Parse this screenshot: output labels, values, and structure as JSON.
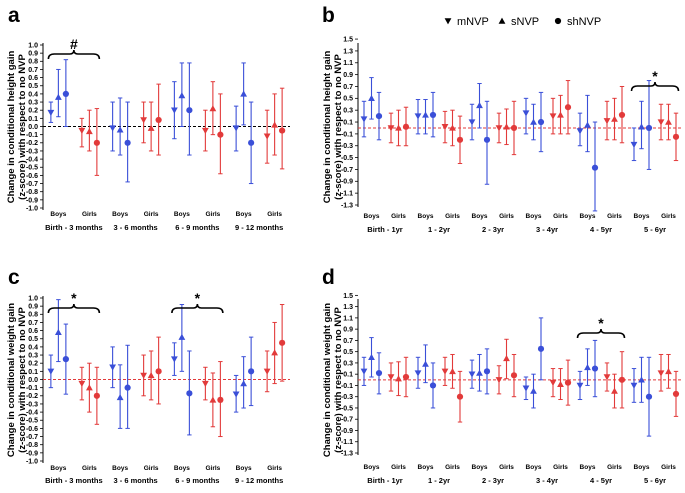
{
  "legend": {
    "entries": [
      {
        "symbol": "▼",
        "label": "mNVP",
        "marker": "tri-down"
      },
      {
        "symbol": "▲",
        "label": "sNVP",
        "marker": "tri-up"
      },
      {
        "symbol": "●",
        "label": "shNVP",
        "marker": "circle"
      }
    ]
  },
  "colors": {
    "boys": "#3a4fd8",
    "girls": "#e23a3a",
    "axis": "#000000",
    "zero_black": "#000000",
    "zero_red": "#e23a3a"
  },
  "chart_data": [
    {
      "id": "a",
      "letter": "a",
      "type": "scatter",
      "subtype": "errorbar",
      "ylabel_lines": [
        "Change in conditional height gain",
        "(z-score) with respect to no NVP"
      ],
      "ylim": [
        -1.0,
        1.0
      ],
      "ytick_step": 0.1,
      "zero_line": "black",
      "categories": [
        "Birth - 3 months",
        "3 - 6 months",
        "6 - 9 months",
        "9 - 12 months"
      ],
      "group_labels": [
        "Boys",
        "Girls"
      ],
      "legend": false,
      "annotations": [
        {
          "category_index": 0,
          "text": "#"
        }
      ],
      "boys": [
        [
          {
            "y": 0.17,
            "lo": 0.05,
            "hi": 0.3
          },
          {
            "y": 0.36,
            "lo": 0.12,
            "hi": 0.7
          },
          {
            "y": 0.4,
            "lo": 0.0,
            "hi": 0.82
          }
        ],
        [
          {
            "y": -0.02,
            "lo": -0.3,
            "hi": 0.3
          },
          {
            "y": -0.04,
            "lo": -0.35,
            "hi": 0.35
          },
          {
            "y": -0.2,
            "lo": -0.68,
            "hi": 0.3
          }
        ],
        [
          {
            "y": 0.2,
            "lo": -0.15,
            "hi": 0.55
          },
          {
            "y": 0.38,
            "lo": 0.0,
            "hi": 0.78
          },
          {
            "y": 0.2,
            "lo": -0.35,
            "hi": 0.78
          }
        ],
        [
          {
            "y": -0.02,
            "lo": -0.3,
            "hi": 0.25
          },
          {
            "y": 0.4,
            "lo": 0.02,
            "hi": 0.78
          },
          {
            "y": -0.2,
            "lo": -0.7,
            "hi": 0.3
          }
        ]
      ],
      "girls": [
        [
          {
            "y": -0.05,
            "lo": -0.25,
            "hi": 0.1
          },
          {
            "y": -0.06,
            "lo": -0.3,
            "hi": 0.2
          },
          {
            "y": -0.2,
            "lo": -0.6,
            "hi": 0.22
          }
        ],
        [
          {
            "y": 0.08,
            "lo": -0.2,
            "hi": 0.3
          },
          {
            "y": -0.02,
            "lo": -0.3,
            "hi": 0.3
          },
          {
            "y": 0.08,
            "lo": -0.35,
            "hi": 0.52
          }
        ],
        [
          {
            "y": -0.05,
            "lo": -0.3,
            "hi": 0.2
          },
          {
            "y": 0.22,
            "lo": -0.1,
            "hi": 0.55
          },
          {
            "y": -0.1,
            "lo": -0.58,
            "hi": 0.4
          }
        ],
        [
          {
            "y": -0.12,
            "lo": -0.45,
            "hi": 0.2
          },
          {
            "y": 0.02,
            "lo": -0.35,
            "hi": 0.4
          },
          {
            "y": -0.05,
            "lo": -0.52,
            "hi": 0.47
          }
        ]
      ]
    },
    {
      "id": "b",
      "letter": "b",
      "type": "scatter",
      "subtype": "errorbar",
      "ylabel_lines": [
        "Change in conditional height gain",
        "(z-score) with respect to no NVP"
      ],
      "ylim": [
        -1.3,
        1.4
      ],
      "ytick_step": 0.2,
      "zero_line": "red",
      "categories": [
        "Birth - 1yr",
        "1 - 2yr",
        "2 - 3yr",
        "3 - 4yr",
        "4 - 5yr",
        "5 - 6yr"
      ],
      "group_labels": [
        "Boys",
        "Girls"
      ],
      "legend": true,
      "annotations": [
        {
          "category_index": 5,
          "text": "*"
        }
      ],
      "boys": [
        [
          {
            "y": 0.15,
            "lo": -0.15,
            "hi": 0.45
          },
          {
            "y": 0.5,
            "lo": 0.15,
            "hi": 0.85
          },
          {
            "y": 0.2,
            "lo": -0.2,
            "hi": 0.6
          }
        ],
        [
          {
            "y": 0.2,
            "lo": -0.1,
            "hi": 0.48
          },
          {
            "y": 0.22,
            "lo": -0.1,
            "hi": 0.48
          },
          {
            "y": 0.22,
            "lo": -0.15,
            "hi": 0.6
          }
        ],
        [
          {
            "y": 0.1,
            "lo": -0.2,
            "hi": 0.4
          },
          {
            "y": 0.38,
            "lo": 0.0,
            "hi": 0.75
          },
          {
            "y": -0.2,
            "lo": -0.95,
            "hi": 0.45
          }
        ],
        [
          {
            "y": 0.25,
            "lo": -0.1,
            "hi": 0.5
          },
          {
            "y": 0.1,
            "lo": -0.2,
            "hi": 0.4
          },
          {
            "y": 0.1,
            "lo": -0.4,
            "hi": 0.6
          }
        ],
        [
          {
            "y": -0.05,
            "lo": -0.3,
            "hi": 0.25
          },
          {
            "y": 0.05,
            "lo": -0.4,
            "hi": 0.55
          },
          {
            "y": -0.67,
            "lo": -1.4,
            "hi": 0.1
          }
        ],
        [
          {
            "y": -0.28,
            "lo": -0.55,
            "hi": 0.0
          },
          {
            "y": 0.02,
            "lo": -0.35,
            "hi": 0.45
          },
          {
            "y": 0.0,
            "lo": -0.7,
            "hi": 0.8
          }
        ]
      ],
      "girls": [
        [
          {
            "y": 0.0,
            "lo": -0.25,
            "hi": 0.25
          },
          {
            "y": 0.0,
            "lo": -0.3,
            "hi": 0.3
          },
          {
            "y": 0.02,
            "lo": -0.3,
            "hi": 0.35
          }
        ],
        [
          {
            "y": 0.02,
            "lo": -0.25,
            "hi": 0.28
          },
          {
            "y": 0.0,
            "lo": -0.3,
            "hi": 0.3
          },
          {
            "y": -0.2,
            "lo": -0.6,
            "hi": 0.2
          }
        ],
        [
          {
            "y": 0.0,
            "lo": -0.25,
            "hi": 0.25
          },
          {
            "y": 0.02,
            "lo": -0.28,
            "hi": 0.32
          },
          {
            "y": 0.0,
            "lo": -0.45,
            "hi": 0.45
          }
        ],
        [
          {
            "y": 0.2,
            "lo": -0.1,
            "hi": 0.5
          },
          {
            "y": 0.22,
            "lo": -0.1,
            "hi": 0.55
          },
          {
            "y": 0.35,
            "lo": -0.1,
            "hi": 0.8
          }
        ],
        [
          {
            "y": 0.12,
            "lo": -0.2,
            "hi": 0.45
          },
          {
            "y": 0.15,
            "lo": -0.2,
            "hi": 0.5
          },
          {
            "y": 0.22,
            "lo": -0.25,
            "hi": 0.7
          }
        ],
        [
          {
            "y": 0.1,
            "lo": -0.2,
            "hi": 0.4
          },
          {
            "y": 0.1,
            "lo": -0.2,
            "hi": 0.4
          },
          {
            "y": -0.15,
            "lo": -0.55,
            "hi": 0.25
          }
        ]
      ]
    },
    {
      "id": "c",
      "letter": "c",
      "type": "scatter",
      "subtype": "errorbar",
      "ylabel_lines": [
        "Change in conditional weight gain",
        "(z-score) with respect to no NVP"
      ],
      "ylim": [
        -1.0,
        1.0
      ],
      "ytick_step": 0.1,
      "zero_line": "red",
      "categories": [
        "Birth - 3 months",
        "3 - 6 months",
        "6 - 9 months",
        "9 - 12 months"
      ],
      "group_labels": [
        "Boys",
        "Girls"
      ],
      "legend": false,
      "annotations": [
        {
          "category_index": 0,
          "text": "*"
        },
        {
          "category_index": 2,
          "text": "*"
        }
      ],
      "boys": [
        [
          {
            "y": 0.1,
            "lo": -0.1,
            "hi": 0.3
          },
          {
            "y": 0.58,
            "lo": 0.22,
            "hi": 0.98
          },
          {
            "y": 0.25,
            "lo": -0.18,
            "hi": 0.68
          }
        ],
        [
          {
            "y": 0.15,
            "lo": -0.1,
            "hi": 0.4
          },
          {
            "y": -0.22,
            "lo": -0.6,
            "hi": 0.18
          },
          {
            "y": -0.1,
            "lo": -0.6,
            "hi": 0.42
          }
        ],
        [
          {
            "y": 0.25,
            "lo": 0.05,
            "hi": 0.45
          },
          {
            "y": 0.52,
            "lo": 0.1,
            "hi": 0.92
          },
          {
            "y": -0.17,
            "lo": -0.68,
            "hi": 0.35
          }
        ],
        [
          {
            "y": -0.18,
            "lo": -0.4,
            "hi": 0.05
          },
          {
            "y": -0.05,
            "lo": -0.35,
            "hi": 0.28
          },
          {
            "y": 0.1,
            "lo": -0.32,
            "hi": 0.52
          }
        ]
      ],
      "girls": [
        [
          {
            "y": -0.05,
            "lo": -0.25,
            "hi": 0.15
          },
          {
            "y": -0.1,
            "lo": -0.4,
            "hi": 0.2
          },
          {
            "y": -0.2,
            "lo": -0.55,
            "hi": 0.15
          }
        ],
        [
          {
            "y": 0.05,
            "lo": -0.2,
            "hi": 0.3
          },
          {
            "y": 0.05,
            "lo": -0.25,
            "hi": 0.35
          },
          {
            "y": 0.1,
            "lo": -0.3,
            "hi": 0.52
          }
        ],
        [
          {
            "y": -0.05,
            "lo": -0.25,
            "hi": 0.15
          },
          {
            "y": -0.25,
            "lo": -0.58,
            "hi": 0.08
          },
          {
            "y": -0.25,
            "lo": -0.7,
            "hi": 0.22
          }
        ],
        [
          {
            "y": 0.1,
            "lo": -0.15,
            "hi": 0.35
          },
          {
            "y": 0.33,
            "lo": -0.05,
            "hi": 0.7
          },
          {
            "y": 0.45,
            "lo": -0.02,
            "hi": 0.92
          }
        ]
      ]
    },
    {
      "id": "d",
      "letter": "d",
      "type": "scatter",
      "subtype": "errorbar",
      "ylabel_lines": [
        "Change in conditional weight gain",
        "(z-score) with respect to no NVP"
      ],
      "ylim": [
        -1.3,
        1.4
      ],
      "ytick_step": 0.2,
      "zero_line": "red",
      "categories": [
        "Birth - 1yr",
        "1 - 2yr",
        "2 - 3yr",
        "3 - 4yr",
        "4 - 5yr",
        "5 - 6yr"
      ],
      "group_labels": [
        "Boys",
        "Girls"
      ],
      "legend": false,
      "annotations": [
        {
          "category_index": 4,
          "text": "*"
        }
      ],
      "boys": [
        [
          {
            "y": 0.15,
            "lo": -0.1,
            "hi": 0.4
          },
          {
            "y": 0.4,
            "lo": 0.05,
            "hi": 0.75
          },
          {
            "y": 0.12,
            "lo": -0.25,
            "hi": 0.48
          }
        ],
        [
          {
            "y": 0.12,
            "lo": -0.15,
            "hi": 0.4
          },
          {
            "y": 0.28,
            "lo": -0.05,
            "hi": 0.62
          },
          {
            "y": -0.1,
            "lo": -0.5,
            "hi": 0.3
          }
        ],
        [
          {
            "y": 0.1,
            "lo": -0.15,
            "hi": 0.35
          },
          {
            "y": 0.12,
            "lo": -0.2,
            "hi": 0.45
          },
          {
            "y": 0.15,
            "lo": -0.25,
            "hi": 0.55
          }
        ],
        [
          {
            "y": -0.15,
            "lo": -0.35,
            "hi": 0.05
          },
          {
            "y": -0.2,
            "lo": -0.5,
            "hi": 0.1
          },
          {
            "y": 0.55,
            "lo": 0.0,
            "hi": 1.1
          }
        ],
        [
          {
            "y": -0.1,
            "lo": -0.35,
            "hi": 0.15
          },
          {
            "y": 0.22,
            "lo": -0.1,
            "hi": 0.55
          },
          {
            "y": 0.2,
            "lo": -0.3,
            "hi": 0.7
          }
        ],
        [
          {
            "y": -0.1,
            "lo": -0.4,
            "hi": 0.2
          },
          {
            "y": 0.0,
            "lo": -0.4,
            "hi": 0.4
          },
          {
            "y": -0.3,
            "lo": -1.0,
            "hi": 0.4
          }
        ]
      ],
      "girls": [
        [
          {
            "y": 0.05,
            "lo": -0.2,
            "hi": 0.3
          },
          {
            "y": 0.02,
            "lo": -0.28,
            "hi": 0.32
          },
          {
            "y": 0.05,
            "lo": -0.3,
            "hi": 0.4
          }
        ],
        [
          {
            "y": 0.15,
            "lo": -0.1,
            "hi": 0.4
          },
          {
            "y": 0.15,
            "lo": -0.15,
            "hi": 0.45
          },
          {
            "y": -0.3,
            "lo": -0.75,
            "hi": 0.15
          }
        ],
        [
          {
            "y": 0.0,
            "lo": -0.25,
            "hi": 0.25
          },
          {
            "y": 0.38,
            "lo": 0.02,
            "hi": 0.72
          },
          {
            "y": 0.08,
            "lo": -0.3,
            "hi": 0.45
          }
        ],
        [
          {
            "y": -0.05,
            "lo": -0.3,
            "hi": 0.2
          },
          {
            "y": -0.08,
            "lo": -0.35,
            "hi": 0.2
          },
          {
            "y": -0.05,
            "lo": -0.45,
            "hi": 0.35
          }
        ],
        [
          {
            "y": 0.05,
            "lo": -0.2,
            "hi": 0.3
          },
          {
            "y": -0.2,
            "lo": -0.5,
            "hi": 0.1
          },
          {
            "y": 0.0,
            "lo": -0.5,
            "hi": 0.5
          }
        ],
        [
          {
            "y": 0.12,
            "lo": -0.2,
            "hi": 0.45
          },
          {
            "y": 0.15,
            "lo": -0.15,
            "hi": 0.45
          },
          {
            "y": -0.25,
            "lo": -0.65,
            "hi": 0.15
          }
        ]
      ]
    }
  ]
}
